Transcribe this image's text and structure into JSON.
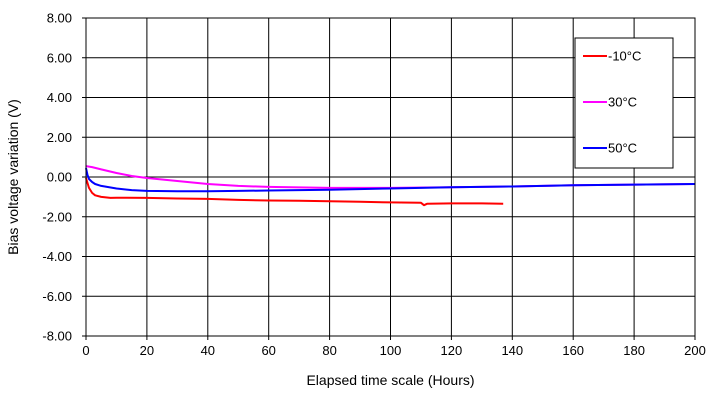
{
  "chart_data": {
    "type": "line",
    "xlabel": "Elapsed time scale (Hours)",
    "ylabel": "Bias voltage variation (V)",
    "xlim": [
      0,
      200
    ],
    "ylim": [
      -8,
      8
    ],
    "x_ticks": [
      "0",
      "20",
      "40",
      "60",
      "80",
      "100",
      "120",
      "140",
      "160",
      "180",
      "200"
    ],
    "y_ticks": [
      "8.00",
      "6.00",
      "4.00",
      "2.00",
      "0.00",
      "-2.00",
      "-4.00",
      "-6.00",
      "-8.00"
    ],
    "grid": true,
    "legend_position": "top-right",
    "series": [
      {
        "name": "-10°C",
        "color": "#ff0000",
        "x": [
          0,
          0.5,
          1,
          2,
          3,
          5,
          8,
          10,
          20,
          30,
          40,
          50,
          60,
          70,
          80,
          90,
          100,
          110,
          111,
          112,
          120,
          130,
          137
        ],
        "y": [
          -0.05,
          -0.3,
          -0.55,
          -0.8,
          -0.92,
          -1.0,
          -1.05,
          -1.04,
          -1.05,
          -1.08,
          -1.1,
          -1.15,
          -1.18,
          -1.2,
          -1.22,
          -1.25,
          -1.28,
          -1.3,
          -1.42,
          -1.35,
          -1.33,
          -1.33,
          -1.35
        ]
      },
      {
        "name": "30°C",
        "color": "#ff00ff",
        "x": [
          0,
          2,
          5,
          10,
          15,
          20,
          30,
          40,
          50,
          60,
          80,
          100,
          120,
          140,
          160,
          180,
          200
        ],
        "y": [
          0.55,
          0.5,
          0.38,
          0.2,
          0.05,
          -0.05,
          -0.2,
          -0.35,
          -0.45,
          -0.5,
          -0.55,
          -0.55,
          -0.52,
          -0.48,
          -0.42,
          -0.38,
          -0.35
        ]
      },
      {
        "name": "50°C",
        "color": "#0000ff",
        "x": [
          0,
          0.5,
          1,
          2,
          3,
          5,
          10,
          15,
          20,
          30,
          40,
          50,
          60,
          80,
          100,
          120,
          140,
          160,
          180,
          200
        ],
        "y": [
          0.45,
          0.1,
          -0.1,
          -0.25,
          -0.35,
          -0.45,
          -0.58,
          -0.66,
          -0.7,
          -0.72,
          -0.72,
          -0.7,
          -0.68,
          -0.64,
          -0.58,
          -0.52,
          -0.48,
          -0.42,
          -0.38,
          -0.35
        ]
      }
    ]
  }
}
